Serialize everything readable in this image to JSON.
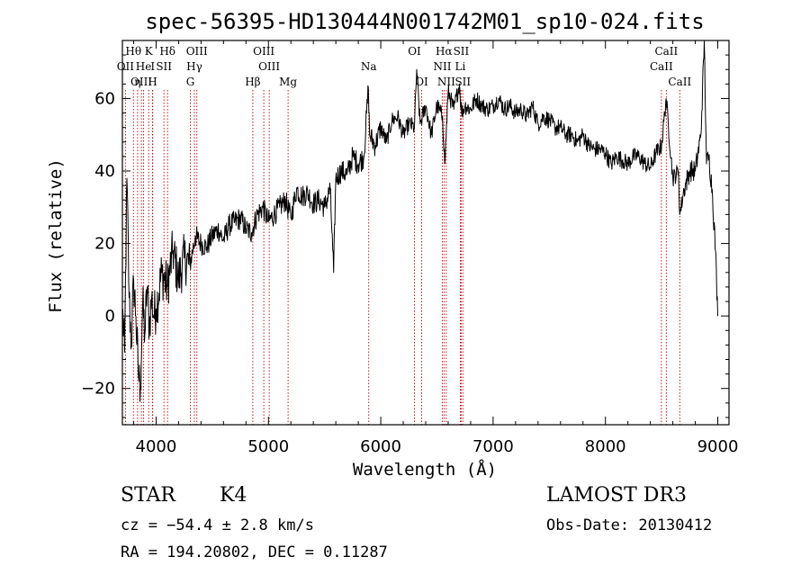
{
  "chart_data": {
    "type": "line",
    "title": "spec-56395-HD130444N001742M01_sp10-024.fits",
    "xlabel": "Wavelength (Å)",
    "ylabel": "Flux (relative)",
    "xlim": [
      3700,
      9100
    ],
    "ylim": [
      -30,
      76
    ],
    "x_ticks": [
      4000,
      5000,
      6000,
      7000,
      8000,
      9000
    ],
    "y_ticks": [
      -20,
      0,
      20,
      40,
      60
    ],
    "x_tick_labels": [
      "4000",
      "5000",
      "6000",
      "7000",
      "8000",
      "9000"
    ],
    "y_tick_labels": [
      "−20",
      "0",
      "20",
      "40",
      "60"
    ],
    "series": [
      {
        "name": "spectrum",
        "x": [
          3700,
          3720,
          3740,
          3760,
          3780,
          3800,
          3820,
          3840,
          3860,
          3880,
          3900,
          3920,
          3940,
          3960,
          3980,
          4000,
          4050,
          4100,
          4150,
          4200,
          4250,
          4300,
          4350,
          4400,
          4450,
          4500,
          4550,
          4600,
          4650,
          4700,
          4750,
          4800,
          4850,
          4900,
          4950,
          5000,
          5050,
          5100,
          5150,
          5200,
          5250,
          5300,
          5350,
          5400,
          5450,
          5500,
          5550,
          5580,
          5600,
          5650,
          5700,
          5750,
          5800,
          5850,
          5890,
          5900,
          5950,
          6000,
          6050,
          6100,
          6150,
          6200,
          6250,
          6300,
          6320,
          6350,
          6400,
          6450,
          6500,
          6550,
          6570,
          6600,
          6650,
          6700,
          6720,
          6750,
          6800,
          6850,
          6900,
          6950,
          7000,
          7050,
          7100,
          7150,
          7200,
          7250,
          7300,
          7350,
          7400,
          7450,
          7500,
          7550,
          7600,
          7650,
          7700,
          7750,
          7800,
          7850,
          7900,
          7950,
          8000,
          8050,
          8100,
          8150,
          8200,
          8250,
          8300,
          8350,
          8400,
          8450,
          8500,
          8540,
          8600,
          8650,
          8662,
          8700,
          8750,
          8800,
          8850,
          8880,
          8900,
          8920,
          8950,
          8980,
          9000
        ],
        "values": [
          2,
          -10,
          38,
          5,
          -8,
          10,
          0,
          -15,
          -20,
          3,
          -5,
          8,
          -3,
          5,
          0,
          2,
          12,
          8,
          18,
          10,
          16,
          14,
          22,
          20,
          19,
          22,
          24,
          21,
          25,
          26,
          27,
          24,
          23,
          28,
          30,
          26,
          28,
          30,
          32,
          27,
          35,
          33,
          34,
          31,
          32,
          30,
          35,
          12,
          38,
          40,
          39,
          44,
          42,
          44,
          63,
          50,
          47,
          52,
          48,
          54,
          55,
          50,
          53,
          52,
          68,
          53,
          58,
          50,
          58,
          55,
          42,
          62,
          57,
          64,
          56,
          58,
          57,
          60,
          58,
          57,
          58,
          60,
          57,
          58,
          56,
          57,
          55,
          58,
          53,
          55,
          54,
          52,
          52,
          50,
          50,
          48,
          50,
          47,
          46,
          46,
          45,
          42,
          44,
          43,
          42,
          44,
          44,
          42,
          41,
          45,
          47,
          60,
          38,
          40,
          28,
          35,
          40,
          40,
          50,
          76,
          42,
          44,
          35,
          18,
          0
        ]
      }
    ],
    "line_markers": [
      {
        "label": "Hθ",
        "x": 3798,
        "row": 1
      },
      {
        "label": "OII",
        "x": 3727,
        "row": 2
      },
      {
        "label": "OIII",
        "x": 3869,
        "row": 3
      },
      {
        "label": "He",
        "x": 3889,
        "row": 2
      },
      {
        "label": "η",
        "x": 3835,
        "row": 3
      },
      {
        "label": "K",
        "x": 3934,
        "row": 1
      },
      {
        "label": "H",
        "x": 3968,
        "row": 3
      },
      {
        "label": "I",
        "x": 3970,
        "row": 2
      },
      {
        "label": "SII",
        "x": 4070,
        "row": 2
      },
      {
        "label": "Hδ",
        "x": 4102,
        "row": 1
      },
      {
        "label": "OIII",
        "x": 4363,
        "row": 1
      },
      {
        "label": "Hγ",
        "x": 4341,
        "row": 2
      },
      {
        "label": "G",
        "x": 4305,
        "row": 3
      },
      {
        "label": "OIII",
        "x": 4959,
        "row": 1
      },
      {
        "label": "OIII",
        "x": 5007,
        "row": 2
      },
      {
        "label": "Hβ",
        "x": 4861,
        "row": 3
      },
      {
        "label": "Mg",
        "x": 5175,
        "row": 3
      },
      {
        "label": "Na",
        "x": 5893,
        "row": 2
      },
      {
        "label": "OI",
        "x": 6300,
        "row": 1
      },
      {
        "label": "OI",
        "x": 6364,
        "row": 3
      },
      {
        "label": "Hα",
        "x": 6563,
        "row": 1
      },
      {
        "label": "NII",
        "x": 6548,
        "row": 2
      },
      {
        "label": "NII",
        "x": 6583,
        "row": 3
      },
      {
        "label": "SII",
        "x": 6716,
        "row": 1
      },
      {
        "label": "Li",
        "x": 6708,
        "row": 2
      },
      {
        "label": "SII",
        "x": 6731,
        "row": 3
      },
      {
        "label": "CaII",
        "x": 8542,
        "row": 1
      },
      {
        "label": "CaII",
        "x": 8498,
        "row": 2
      },
      {
        "label": "CaII",
        "x": 8662,
        "row": 3
      }
    ],
    "grid": false,
    "legend": "none"
  },
  "info": {
    "object_class": "STAR",
    "subclass": "K4",
    "survey": "LAMOST DR3",
    "cz_line": "cz = −54.4 ± 2.8 km/s",
    "obs_date": "Obs-Date: 20130412",
    "radec_line": "RA = 194.20802, DEC =   0.11287"
  }
}
